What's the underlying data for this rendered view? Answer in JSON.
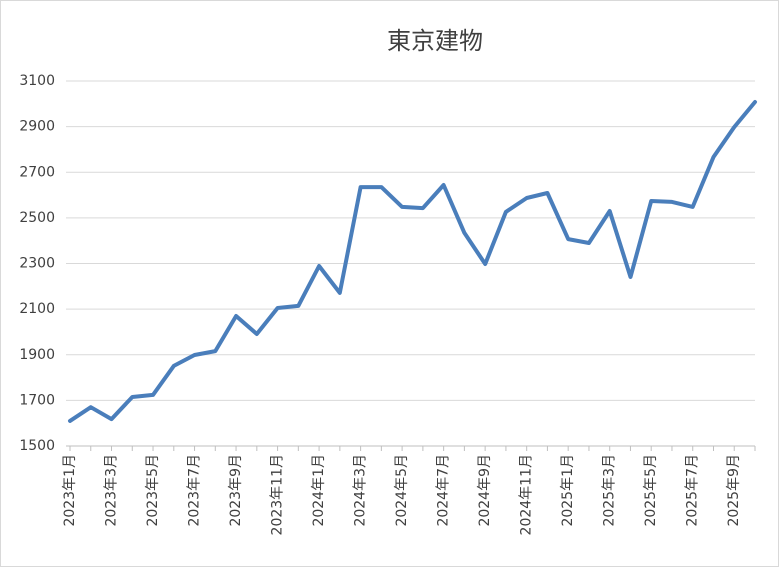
{
  "chart_data": {
    "type": "line",
    "title": "東京建物",
    "categories": [
      "2023年1月",
      null,
      "2023年3月",
      null,
      "2023年5月",
      null,
      "2023年7月",
      null,
      "2023年9月",
      null,
      "2023年11月",
      null,
      "2024年1月",
      null,
      "2024年3月",
      null,
      "2024年5月",
      null,
      "2024年7月",
      null,
      "2024年9月",
      null,
      "2024年11月",
      null,
      "2025年1月",
      null,
      "2025年3月",
      null,
      "2025年5月",
      null,
      "2025年7月",
      null,
      "2025年9月",
      null
    ],
    "series": [
      {
        "name": "東京建物",
        "color": "#4a7ebb",
        "values": [
          1610,
          1670,
          1618,
          1715,
          1724,
          1851,
          1899,
          1916,
          2070,
          1991,
          2105,
          2114,
          2289,
          2171,
          2635,
          2635,
          2548,
          2543,
          2644,
          2434,
          2298,
          2526,
          2587,
          2609,
          2407,
          2390,
          2530,
          2241,
          2574,
          2570,
          2548,
          2767,
          2898,
          3008
        ]
      }
    ],
    "ylim": [
      1500,
      3100
    ],
    "yticks": [
      1500,
      1700,
      1900,
      2100,
      2300,
      2500,
      2700,
      2900,
      3100
    ],
    "grid": true
  }
}
